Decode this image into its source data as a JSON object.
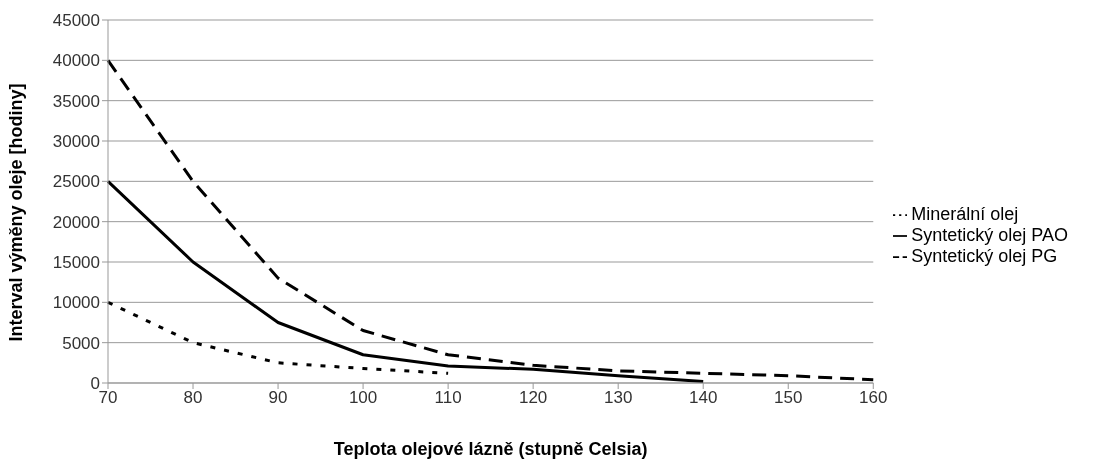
{
  "chart_data": {
    "type": "line",
    "xlabel": "Teplota olejové lázně (stupně Celsia)",
    "ylabel": "Interval výměny oleje [hodiny]",
    "categories": [
      "70",
      "80",
      "90",
      "100",
      "110",
      "120",
      "130",
      "140",
      "150",
      "160"
    ],
    "series": [
      {
        "name": "Minerální olej",
        "color": "#000000",
        "line_style": "dotted",
        "values": [
          10000,
          5000,
          2500,
          1800,
          1200,
          null,
          null,
          null,
          null,
          null
        ]
      },
      {
        "name": "Syntetický olej PAO",
        "color": "#000000",
        "line_style": "solid",
        "values": [
          25000,
          15000,
          7500,
          3500,
          2100,
          1700,
          900,
          200,
          null,
          null
        ]
      },
      {
        "name": "Syntetický olej PG",
        "color": "#000000",
        "line_style": "dashed",
        "values": [
          40000,
          25000,
          13000,
          6500,
          3500,
          2200,
          1500,
          1200,
          900,
          400
        ]
      }
    ],
    "ylim": [
      0,
      45000
    ],
    "yticks": [
      0,
      5000,
      10000,
      15000,
      20000,
      25000,
      30000,
      35000,
      40000,
      45000
    ],
    "grid": "y",
    "legend": "right",
    "marker": "none"
  }
}
